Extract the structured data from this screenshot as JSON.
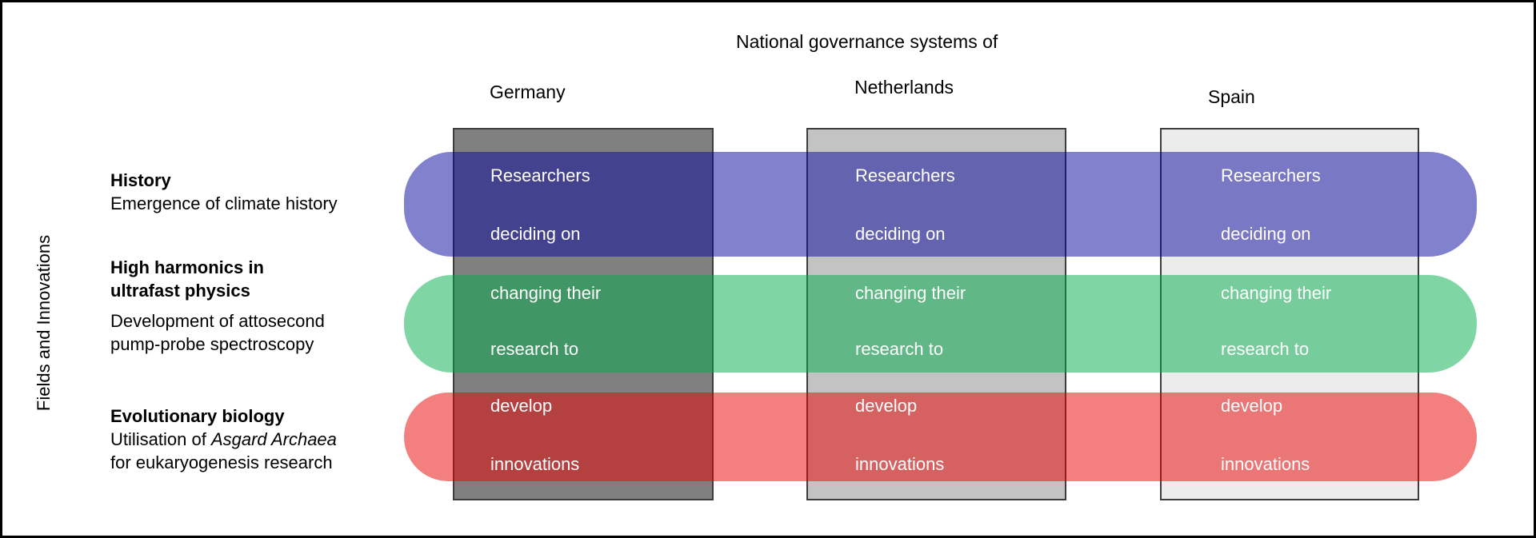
{
  "title": "National governance systems of",
  "y_axis_label": "Fields and Innovations",
  "columns": [
    {
      "name": "Germany",
      "fill": "#808080"
    },
    {
      "name": "Netherlands",
      "fill": "#c3c3c3"
    },
    {
      "name": "Spain",
      "fill": "#ececec"
    }
  ],
  "rows": [
    {
      "title_lines": [
        "History"
      ],
      "desc_lines": [
        "Emergence of climate history"
      ],
      "band_color": "rgba(3,3,155,0.5)",
      "band_color_over_white": "#8181cd",
      "cell_lines": [
        "Researchers",
        "deciding on"
      ]
    },
    {
      "title_lines": [
        "High harmonics in",
        "ultrafast physics"
      ],
      "desc_lines": [
        "Development of attosecond",
        "pump-probe spectroscopy"
      ],
      "band_color": "rgba(0,173,73,0.5)",
      "band_color_over_white": "#7fd6a4",
      "cell_lines": [
        "changing their",
        "research to"
      ]
    },
    {
      "title_lines": [
        "Evolutionary biology"
      ],
      "desc_prefix": "Utilisation of ",
      "desc_italic": "Asgard Archaea",
      "desc_line2": "for eukaryogenesis research",
      "band_color": "rgba(233,0,0,0.5)",
      "band_color_over_white": "#f47a7f",
      "cell_lines": [
        "develop",
        "innovations"
      ]
    }
  ]
}
